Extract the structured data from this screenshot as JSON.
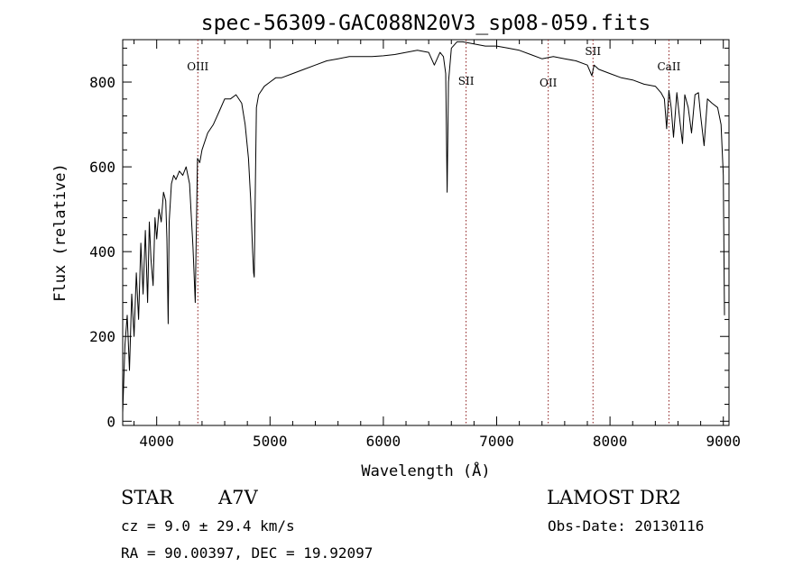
{
  "chart_data": {
    "type": "line",
    "title": "spec-56309-GAC088N20V3_sp08-059.fits",
    "xlabel": "Wavelength (Å)",
    "ylabel": "Flux (relative)",
    "xlim": [
      3700,
      9050
    ],
    "ylim": [
      -10,
      900
    ],
    "xticks": [
      4000,
      5000,
      6000,
      7000,
      8000,
      9000
    ],
    "yticks": [
      0,
      200,
      400,
      600,
      800
    ],
    "grid": false,
    "series": [
      {
        "x": [
          3700,
          3720,
          3740,
          3760,
          3780,
          3800,
          3820,
          3840,
          3860,
          3880,
          3900,
          3920,
          3935,
          3950,
          3968,
          3985,
          4000,
          4020,
          4040,
          4060,
          4080,
          4090,
          4101,
          4110,
          4130,
          4150,
          4170,
          4200,
          4230,
          4260,
          4290,
          4320,
          4340,
          4350,
          4360,
          4380,
          4400,
          4450,
          4500,
          4550,
          4600,
          4650,
          4700,
          4750,
          4780,
          4810,
          4830,
          4845,
          4855,
          4861,
          4868,
          4880,
          4900,
          4950,
          5000,
          5050,
          5100,
          5200,
          5300,
          5400,
          5500,
          5600,
          5700,
          5800,
          5900,
          6000,
          6100,
          6200,
          6300,
          6400,
          6450,
          6500,
          6530,
          6550,
          6563,
          6575,
          6600,
          6650,
          6700,
          6800,
          6900,
          7000,
          7100,
          7200,
          7300,
          7400,
          7500,
          7600,
          7700,
          7800,
          7840,
          7860,
          7900,
          8000,
          8100,
          8200,
          8300,
          8400,
          8450,
          8480,
          8500,
          8520,
          8540,
          8560,
          8590,
          8620,
          8640,
          8660,
          8690,
          8720,
          8750,
          8780,
          8800,
          8830,
          8860,
          8900,
          8950,
          8980,
          9000,
          9010
        ],
        "y": [
          20,
          180,
          250,
          120,
          300,
          200,
          350,
          240,
          420,
          300,
          450,
          280,
          470,
          380,
          320,
          480,
          430,
          500,
          470,
          540,
          520,
          430,
          230,
          470,
          560,
          580,
          570,
          590,
          580,
          600,
          560,
          410,
          280,
          450,
          620,
          610,
          640,
          680,
          700,
          730,
          760,
          760,
          770,
          750,
          700,
          620,
          520,
          410,
          350,
          340,
          500,
          740,
          770,
          790,
          800,
          810,
          810,
          820,
          830,
          840,
          850,
          855,
          860,
          860,
          860,
          862,
          865,
          870,
          875,
          870,
          840,
          870,
          860,
          820,
          540,
          800,
          880,
          895,
          895,
          890,
          885,
          885,
          880,
          875,
          865,
          855,
          860,
          855,
          850,
          840,
          815,
          840,
          830,
          820,
          810,
          805,
          795,
          790,
          775,
          760,
          690,
          780,
          740,
          670,
          775,
          700,
          655,
          770,
          740,
          680,
          770,
          775,
          720,
          650,
          760,
          750,
          740,
          700,
          580,
          250
        ],
        "color": "#000000"
      }
    ],
    "line_markers": [
      {
        "label": "OIII",
        "x": 4363
      },
      {
        "label": "SII",
        "x": 6730
      },
      {
        "label": "OII",
        "x": 7455
      },
      {
        "label": "SII",
        "x": 7850
      },
      {
        "label": "CaII",
        "x": 8520
      }
    ],
    "marker_color": "#8b1a1a"
  },
  "info": {
    "object_class": "STAR",
    "subclass": "A7V",
    "survey": "LAMOST DR2",
    "redshift": "cz = 9.0 ± 29.4 km/s",
    "obs_date": "Obs-Date: 20130116",
    "coords": "RA =  90.00397, DEC =  19.92097"
  }
}
